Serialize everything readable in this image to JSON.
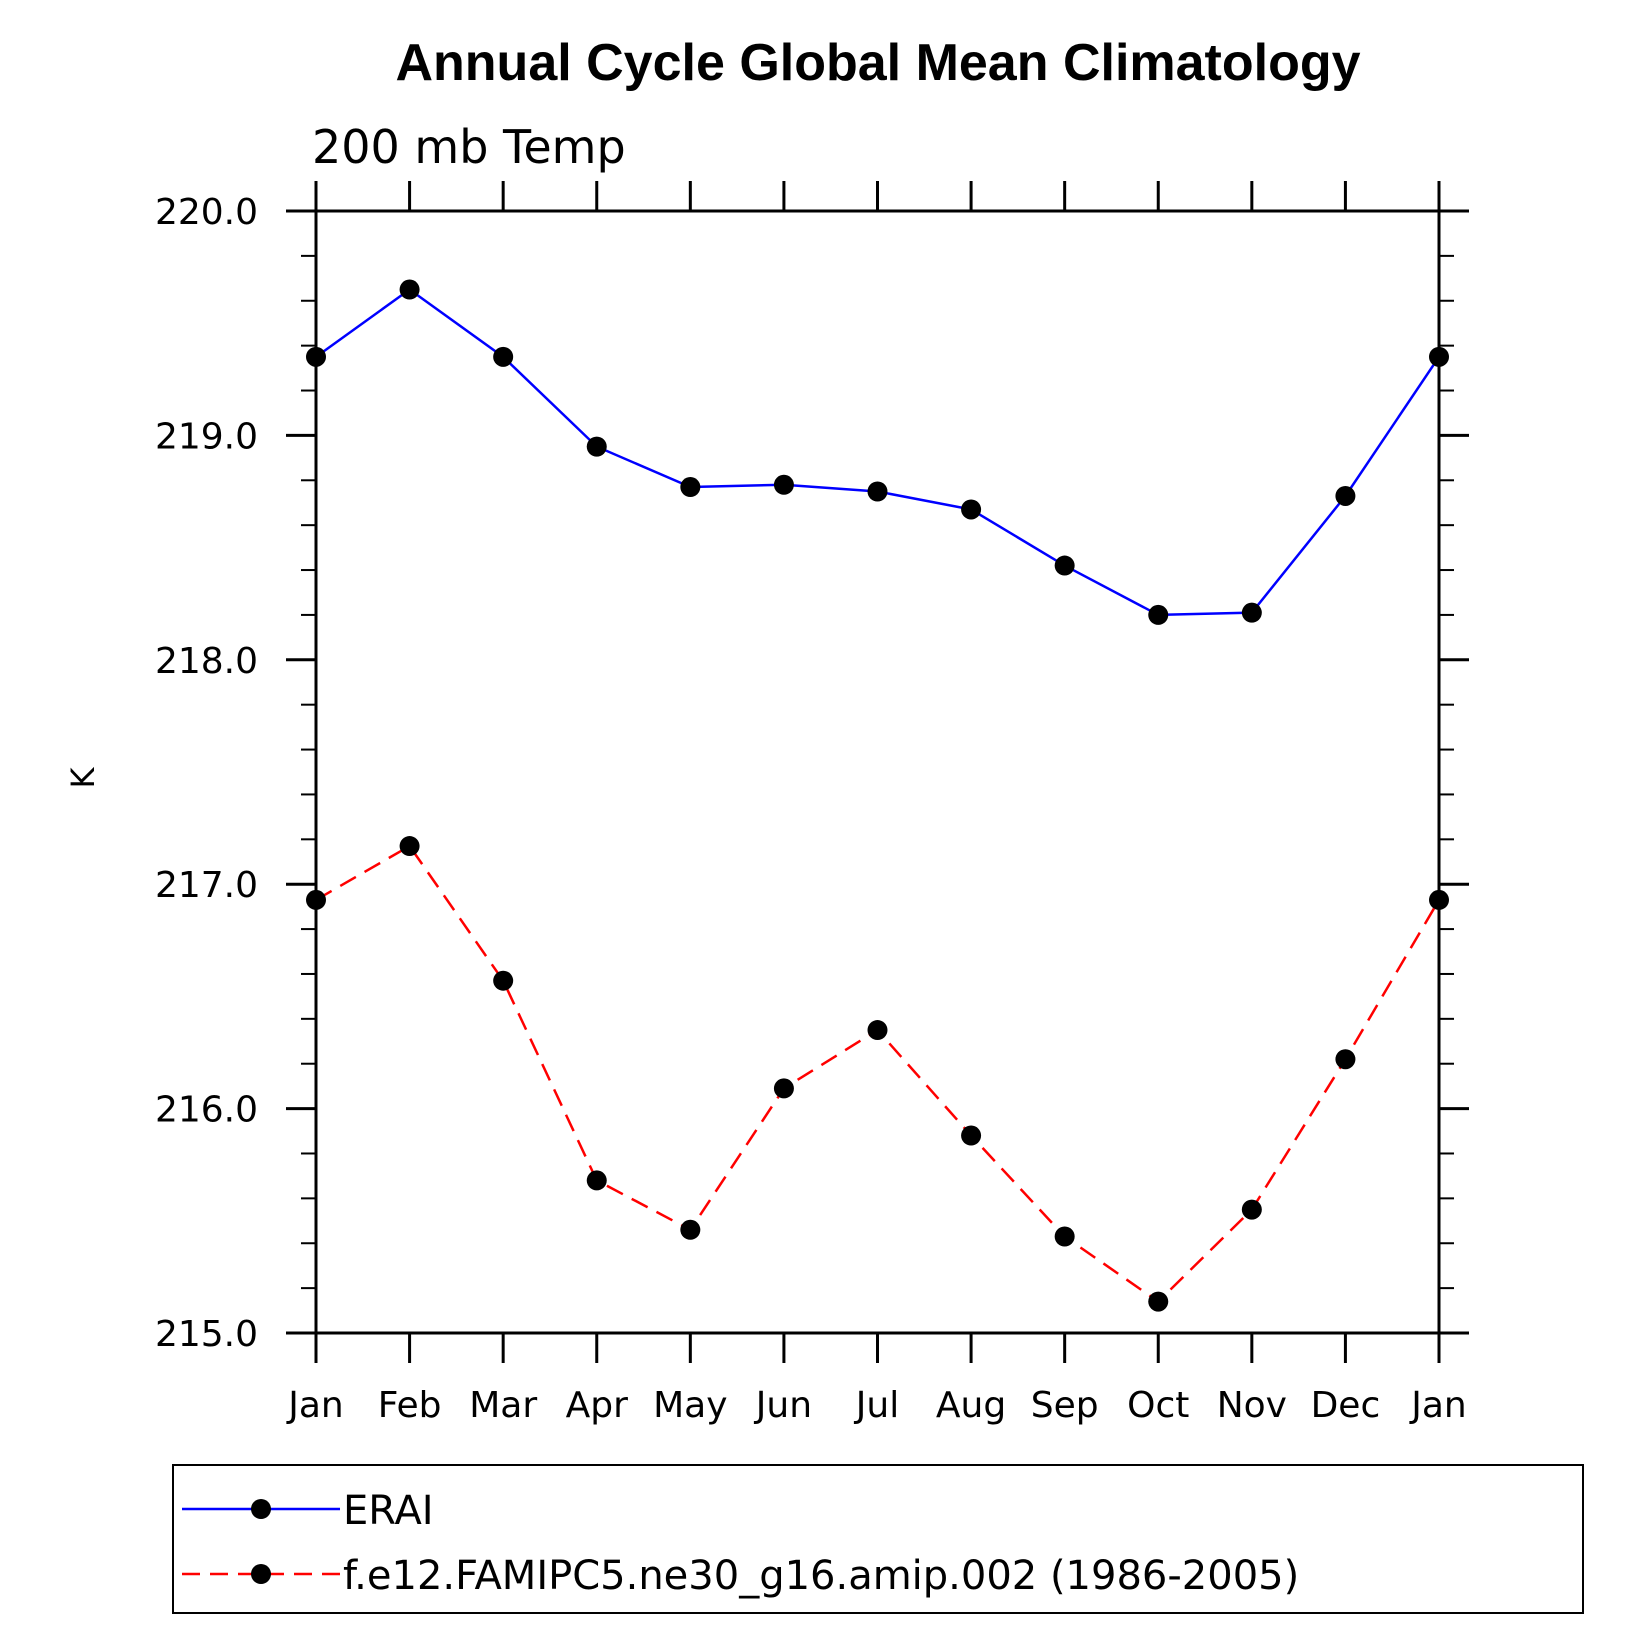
{
  "chart_data": {
    "type": "line",
    "title": "Annual Cycle Global Mean Climatology",
    "subtitle": "200 mb Temp",
    "xlabel": "",
    "ylabel": "K",
    "categories": [
      "Jan",
      "Feb",
      "Mar",
      "Apr",
      "May",
      "Jun",
      "Jul",
      "Aug",
      "Sep",
      "Oct",
      "Nov",
      "Dec",
      "Jan"
    ],
    "ylim": [
      215.0,
      220.0
    ],
    "yticks": [
      "215.0",
      "216.0",
      "217.0",
      "218.0",
      "219.0",
      "220.0"
    ],
    "y_minor_step": 0.2,
    "grid": false,
    "legend_position": "bottom",
    "series": [
      {
        "name": "ERAI",
        "color": "#0000ff",
        "line_style": "solid",
        "marker": "filled-circle",
        "values": [
          219.35,
          219.65,
          219.35,
          218.95,
          218.77,
          218.78,
          218.75,
          218.67,
          218.42,
          218.2,
          218.21,
          218.73,
          219.35
        ]
      },
      {
        "name": "f.e12.FAMIPC5.ne30_g16.amip.002 (1986-2005)",
        "color": "#ff0000",
        "line_style": "dashed",
        "marker": "filled-circle",
        "values": [
          216.93,
          217.17,
          216.57,
          215.68,
          215.46,
          216.09,
          216.35,
          215.88,
          215.43,
          215.14,
          215.55,
          216.22,
          216.93
        ]
      }
    ]
  }
}
